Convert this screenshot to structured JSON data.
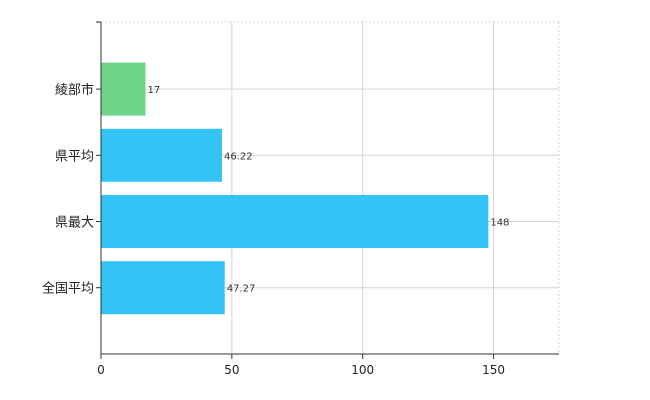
{
  "chart_data": {
    "type": "bar",
    "orientation": "horizontal",
    "categories": [
      "綾部市",
      "県平均",
      "県最大",
      "全国平均"
    ],
    "values": [
      17,
      46.22,
      148,
      47.27
    ],
    "value_labels": [
      "17",
      "46.22",
      "148",
      "47.27"
    ],
    "bar_colors": [
      "#6fd38a",
      "#33c3f5",
      "#33c3f5",
      "#33c3f5"
    ],
    "xlim": [
      0,
      175
    ],
    "xticks": [
      0,
      50,
      100,
      150
    ],
    "xtick_labels": [
      "0",
      "50",
      "100",
      "150"
    ],
    "grid": true,
    "title": "",
    "xlabel": "",
    "ylabel": ""
  }
}
